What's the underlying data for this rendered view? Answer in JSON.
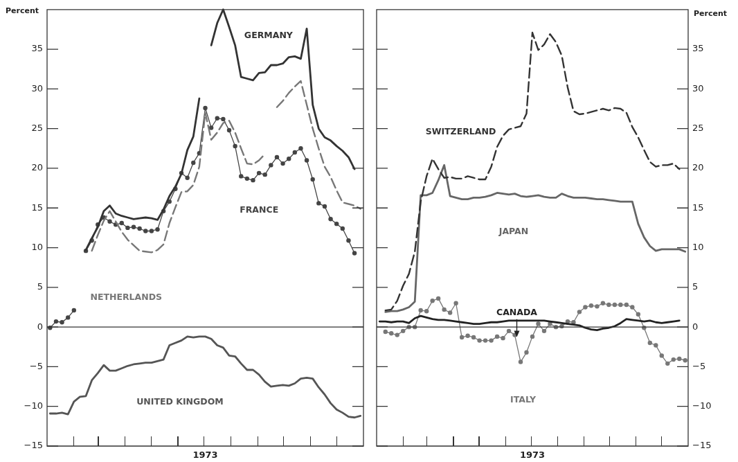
{
  "chart_data": [
    {
      "type": "line",
      "xlabel": "1973",
      "ylabel": "Percent",
      "categories": [
        null,
        null,
        null,
        null,
        null,
        null,
        null,
        null,
        null,
        null,
        null,
        null,
        null,
        null,
        null,
        null,
        null,
        null,
        null,
        null,
        null,
        null,
        null,
        null,
        null,
        null,
        null,
        null,
        null,
        null,
        null,
        null,
        null,
        null,
        null,
        null,
        null,
        null,
        null,
        null,
        null,
        null,
        null,
        null,
        null,
        null,
        null,
        null,
        null,
        null,
        null,
        null,
        null
      ],
      "ylim": [
        -15,
        40
      ],
      "yticks": [
        {
          "value": -15,
          "label": "−15"
        },
        {
          "value": -10,
          "label": "−10"
        },
        {
          "value": -5,
          "label": "−5"
        },
        0,
        5,
        10,
        15,
        20,
        25,
        30,
        35
      ],
      "grid": false,
      "legend": false,
      "ref_lines": [
        {
          "axis": "y",
          "value": 0,
          "color": "#333333"
        }
      ],
      "series": [
        {
          "name": "GERMANY",
          "color": "#333333",
          "line_style": "solid",
          "marker": "none",
          "values": [
            null,
            null,
            null,
            null,
            null,
            null,
            9.7,
            11.2,
            12.6,
            14.6,
            15.3,
            14.3,
            14.0,
            13.8,
            13.6,
            13.7,
            13.8,
            13.7,
            13.5,
            14.8,
            16.5,
            17.7,
            19.3,
            22.3,
            24.0,
            28.8,
            null,
            35.5,
            38.3,
            40,
            37.8,
            35.5,
            31.5,
            31.3,
            31.1,
            32.0,
            32.1,
            33.0,
            33.0,
            33.2,
            34.0,
            34.1,
            33.8,
            37.6,
            28.0,
            25.0,
            23.9,
            23.5,
            22.8,
            22.2,
            21.4,
            19.9,
            null
          ]
        },
        {
          "name": "NETHERLANDS",
          "color": "#777777",
          "line_style": "dashed",
          "marker": "none",
          "values": [
            null,
            null,
            null,
            null,
            null,
            null,
            null,
            9.6,
            11.6,
            13.4,
            14.6,
            13.3,
            12.0,
            11.0,
            10.3,
            9.6,
            9.5,
            9.4,
            9.7,
            10.4,
            13.1,
            15.1,
            17.0,
            17.1,
            17.9,
            20.2,
            27.0,
            23.6,
            24.5,
            25.7,
            26.0,
            24.5,
            22.5,
            20.6,
            20.5,
            21.0,
            21.8,
            null,
            27.7,
            28.5,
            29.5,
            30.3,
            31.0,
            28.0,
            25.0,
            22.5,
            20.2,
            18.9,
            17.2,
            15.7,
            15.5,
            15.3,
            14.9
          ]
        },
        {
          "name": "FRANCE",
          "color": "#444444",
          "line_style": "solid",
          "marker": "circle",
          "values": [
            -0.1,
            0.7,
            0.6,
            1.2,
            2.1,
            null,
            9.6,
            10.9,
            12.9,
            13.8,
            13.3,
            12.9,
            13.1,
            12.5,
            12.6,
            12.4,
            12.1,
            12.1,
            12.3,
            14.6,
            15.8,
            17.4,
            19.4,
            18.8,
            20.7,
            21.9,
            27.6,
            25.1,
            26.3,
            26.2,
            24.8,
            22.8,
            19.0,
            18.7,
            18.5,
            19.4,
            19.2,
            20.4,
            21.4,
            20.6,
            21.2,
            22.0,
            22.5,
            21.0,
            18.6,
            15.6,
            15.2,
            13.6,
            13.0,
            12.4,
            10.9,
            9.3,
            null
          ]
        },
        {
          "name": "UNITED KINGDOM",
          "color": "#555555",
          "line_style": "solid",
          "marker": "none",
          "values": [
            -10.9,
            -10.9,
            -10.8,
            -11.0,
            -9.4,
            -8.8,
            -8.7,
            -6.7,
            -5.8,
            -4.8,
            -5.5,
            -5.5,
            -5.2,
            -4.9,
            -4.7,
            -4.6,
            -4.5,
            -4.5,
            -4.3,
            -4.1,
            -2.3,
            -2.0,
            -1.7,
            -1.2,
            -1.3,
            -1.2,
            -1.2,
            -1.5,
            -2.3,
            -2.6,
            -3.6,
            -3.7,
            -4.6,
            -5.4,
            -5.4,
            -6.0,
            -6.9,
            -7.5,
            -7.4,
            -7.3,
            -7.4,
            -7.1,
            -6.5,
            -6.4,
            -6.5,
            -7.6,
            -8.5,
            -9.6,
            -10.4,
            -10.8,
            -11.3,
            -11.4,
            -11.2
          ]
        }
      ]
    },
    {
      "type": "line",
      "xlabel": "1973",
      "ylabel": "Percent",
      "categories": [
        null,
        null,
        null,
        null,
        null,
        null,
        null,
        null,
        null,
        null,
        null,
        null,
        null,
        null,
        null,
        null,
        null,
        null,
        null,
        null,
        null,
        null,
        null,
        null,
        null,
        null,
        null,
        null,
        null,
        null,
        null,
        null,
        null,
        null,
        null,
        null,
        null,
        null,
        null,
        null,
        null,
        null,
        null,
        null,
        null,
        null,
        null,
        null,
        null,
        null,
        null,
        null,
        null
      ],
      "ylim": [
        -15,
        40
      ],
      "yticks": [
        {
          "value": -15,
          "label": "−15"
        },
        {
          "value": -10,
          "label": "−10"
        },
        {
          "value": -5,
          "label": "−5"
        },
        0,
        5,
        10,
        15,
        20,
        25,
        30,
        35
      ],
      "grid": false,
      "legend": false,
      "ref_lines": [
        {
          "axis": "y",
          "value": 0,
          "color": "#333333"
        }
      ],
      "series": [
        {
          "name": "SWITZERLAND",
          "color": "#333333",
          "line_style": "dashed",
          "marker": "none",
          "values": [
            null,
            2.1,
            2.2,
            3.3,
            5.2,
            6.7,
            9.5,
            15.8,
            19.0,
            21.2,
            19.9,
            18.8,
            18.9,
            18.7,
            18.7,
            19.0,
            18.8,
            18.6,
            18.6,
            20.2,
            22.7,
            24.1,
            24.9,
            25.1,
            25.3,
            26.9,
            37.1,
            34.9,
            35.6,
            36.9,
            35.9,
            34.2,
            30.2,
            27.2,
            26.8,
            26.9,
            27.1,
            27.3,
            27.5,
            27.3,
            27.6,
            27.5,
            27.0,
            25.2,
            23.9,
            22.3,
            20.8,
            20.2,
            20.4,
            20.4,
            20.6,
            19.9,
            null
          ]
        },
        {
          "name": "JAPAN",
          "color": "#666666",
          "line_style": "solid",
          "marker": "none",
          "values": [
            null,
            1.9,
            2.0,
            2.0,
            2.2,
            2.5,
            3.2,
            16.6,
            16.6,
            16.9,
            18.5,
            20.4,
            16.5,
            16.3,
            16.1,
            16.1,
            16.3,
            16.3,
            16.4,
            16.6,
            16.9,
            16.8,
            16.7,
            16.8,
            16.5,
            16.4,
            16.5,
            16.6,
            16.4,
            16.3,
            16.3,
            16.8,
            16.5,
            16.3,
            16.3,
            16.3,
            16.2,
            16.1,
            16.1,
            16.0,
            15.9,
            15.8,
            15.8,
            15.8,
            13.0,
            11.3,
            10.2,
            9.6,
            9.8,
            9.8,
            9.8,
            9.8,
            9.5
          ]
        },
        {
          "name": "CANADA",
          "color": "#222222",
          "line_style": "solid",
          "marker": "none",
          "values": [
            0.7,
            0.7,
            0.6,
            0.7,
            0.7,
            0.5,
            1.1,
            1.4,
            1.2,
            1.0,
            0.9,
            0.9,
            0.8,
            0.7,
            0.6,
            0.5,
            0.4,
            0.4,
            0.5,
            0.6,
            0.6,
            0.7,
            0.8,
            0.8,
            0.8,
            0.8,
            0.8,
            0.8,
            0.8,
            0.7,
            0.6,
            0.5,
            0.4,
            0.3,
            0.2,
            -0.1,
            -0.3,
            -0.4,
            -0.2,
            -0.1,
            0.1,
            0.5,
            1.0,
            0.9,
            0.8,
            0.7,
            0.8,
            0.6,
            0.5,
            0.6,
            0.7,
            0.8,
            null
          ]
        },
        {
          "name": "ITALY",
          "color": "#777777",
          "line_style": "solid",
          "marker": "circle",
          "values": [
            null,
            -0.6,
            -0.8,
            -1.0,
            -0.5,
            0.0,
            0.0,
            2.1,
            2.0,
            3.3,
            3.6,
            2.2,
            1.8,
            3.0,
            -1.3,
            -1.1,
            -1.3,
            -1.7,
            -1.7,
            -1.7,
            -1.2,
            -1.4,
            -0.5,
            -1.0,
            -4.4,
            -3.2,
            -1.2,
            0.4,
            -0.5,
            0.4,
            0.0,
            0.1,
            0.7,
            0.6,
            1.9,
            2.5,
            2.7,
            2.6,
            3.0,
            2.8,
            2.8,
            2.8,
            2.8,
            2.5,
            1.6,
            -0.1,
            -2.0,
            -2.3,
            -3.6,
            -4.6,
            -4.1,
            -4.0,
            -4.2
          ]
        }
      ]
    }
  ]
}
